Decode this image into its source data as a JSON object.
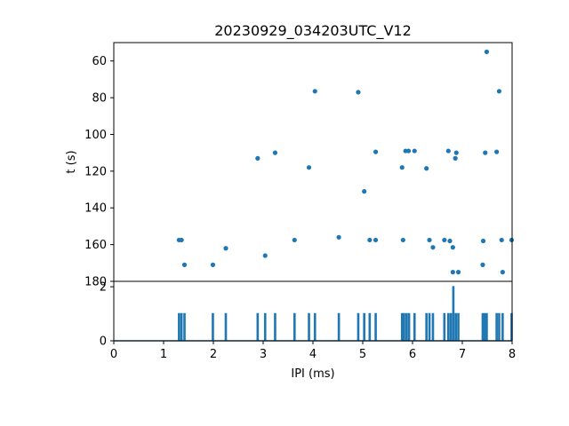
{
  "chart_data": [
    {
      "type": "scatter",
      "title": "20230929_034203UTC_V12",
      "xlabel": "",
      "ylabel": "t (s)",
      "xlim": [
        0,
        8
      ],
      "ylim": [
        180,
        50
      ],
      "y_inverted": true,
      "yticks": [
        60,
        80,
        100,
        120,
        140,
        160,
        180
      ],
      "grid": false,
      "color": "#1f77b4",
      "points": [
        {
          "x": 1.31,
          "y": 157.5
        },
        {
          "x": 1.36,
          "y": 157.5
        },
        {
          "x": 1.42,
          "y": 171
        },
        {
          "x": 1.99,
          "y": 171
        },
        {
          "x": 2.25,
          "y": 162
        },
        {
          "x": 2.89,
          "y": 113
        },
        {
          "x": 3.04,
          "y": 166
        },
        {
          "x": 3.24,
          "y": 110
        },
        {
          "x": 3.63,
          "y": 157.5
        },
        {
          "x": 3.92,
          "y": 118
        },
        {
          "x": 4.04,
          "y": 76.5
        },
        {
          "x": 4.52,
          "y": 156
        },
        {
          "x": 4.91,
          "y": 77
        },
        {
          "x": 5.03,
          "y": 131
        },
        {
          "x": 5.14,
          "y": 157.5
        },
        {
          "x": 5.26,
          "y": 109.5
        },
        {
          "x": 5.26,
          "y": 157.5
        },
        {
          "x": 5.79,
          "y": 118
        },
        {
          "x": 5.81,
          "y": 157.5
        },
        {
          "x": 5.86,
          "y": 109
        },
        {
          "x": 5.92,
          "y": 109
        },
        {
          "x": 6.04,
          "y": 109
        },
        {
          "x": 6.28,
          "y": 118.5
        },
        {
          "x": 6.34,
          "y": 157.5
        },
        {
          "x": 6.41,
          "y": 161.5
        },
        {
          "x": 6.64,
          "y": 157.5
        },
        {
          "x": 6.72,
          "y": 109
        },
        {
          "x": 6.75,
          "y": 158
        },
        {
          "x": 6.81,
          "y": 161.5
        },
        {
          "x": 6.81,
          "y": 175
        },
        {
          "x": 6.86,
          "y": 113
        },
        {
          "x": 6.88,
          "y": 110
        },
        {
          "x": 6.92,
          "y": 175
        },
        {
          "x": 7.41,
          "y": 171
        },
        {
          "x": 7.42,
          "y": 158
        },
        {
          "x": 7.46,
          "y": 110
        },
        {
          "x": 7.49,
          "y": 55
        },
        {
          "x": 7.69,
          "y": 109.5
        },
        {
          "x": 7.74,
          "y": 76.5
        },
        {
          "x": 7.79,
          "y": 157.5
        },
        {
          "x": 7.81,
          "y": 175
        },
        {
          "x": 7.99,
          "y": 157.5
        }
      ]
    },
    {
      "type": "line",
      "title": "",
      "xlabel": "IPI (ms)",
      "ylabel": "",
      "xlim": [
        0,
        8
      ],
      "ylim": [
        0,
        2.2
      ],
      "xticks": [
        0,
        1,
        2,
        3,
        4,
        5,
        6,
        7,
        8
      ],
      "yticks": [
        0,
        2
      ],
      "grid": false,
      "color": "#1f77b4",
      "baseline": 0,
      "bin_width": 0.02,
      "spikes": [
        {
          "x": 1.31,
          "y": 1
        },
        {
          "x": 1.36,
          "y": 1
        },
        {
          "x": 1.42,
          "y": 1
        },
        {
          "x": 1.99,
          "y": 1
        },
        {
          "x": 2.25,
          "y": 1
        },
        {
          "x": 2.89,
          "y": 1
        },
        {
          "x": 3.04,
          "y": 1
        },
        {
          "x": 3.24,
          "y": 1
        },
        {
          "x": 3.63,
          "y": 1
        },
        {
          "x": 3.92,
          "y": 1
        },
        {
          "x": 4.04,
          "y": 1
        },
        {
          "x": 4.52,
          "y": 1
        },
        {
          "x": 4.91,
          "y": 1
        },
        {
          "x": 5.03,
          "y": 1
        },
        {
          "x": 5.14,
          "y": 1
        },
        {
          "x": 5.26,
          "y": 1
        },
        {
          "x": 5.79,
          "y": 1
        },
        {
          "x": 5.83,
          "y": 1
        },
        {
          "x": 5.88,
          "y": 1
        },
        {
          "x": 5.93,
          "y": 1
        },
        {
          "x": 6.04,
          "y": 1
        },
        {
          "x": 6.28,
          "y": 1
        },
        {
          "x": 6.34,
          "y": 1
        },
        {
          "x": 6.41,
          "y": 1
        },
        {
          "x": 6.64,
          "y": 1
        },
        {
          "x": 6.72,
          "y": 1
        },
        {
          "x": 6.77,
          "y": 1
        },
        {
          "x": 6.82,
          "y": 2
        },
        {
          "x": 6.87,
          "y": 1
        },
        {
          "x": 6.92,
          "y": 1
        },
        {
          "x": 7.41,
          "y": 1
        },
        {
          "x": 7.45,
          "y": 1
        },
        {
          "x": 7.49,
          "y": 1
        },
        {
          "x": 7.69,
          "y": 1
        },
        {
          "x": 7.74,
          "y": 1
        },
        {
          "x": 7.81,
          "y": 1
        },
        {
          "x": 7.99,
          "y": 1
        }
      ]
    }
  ]
}
